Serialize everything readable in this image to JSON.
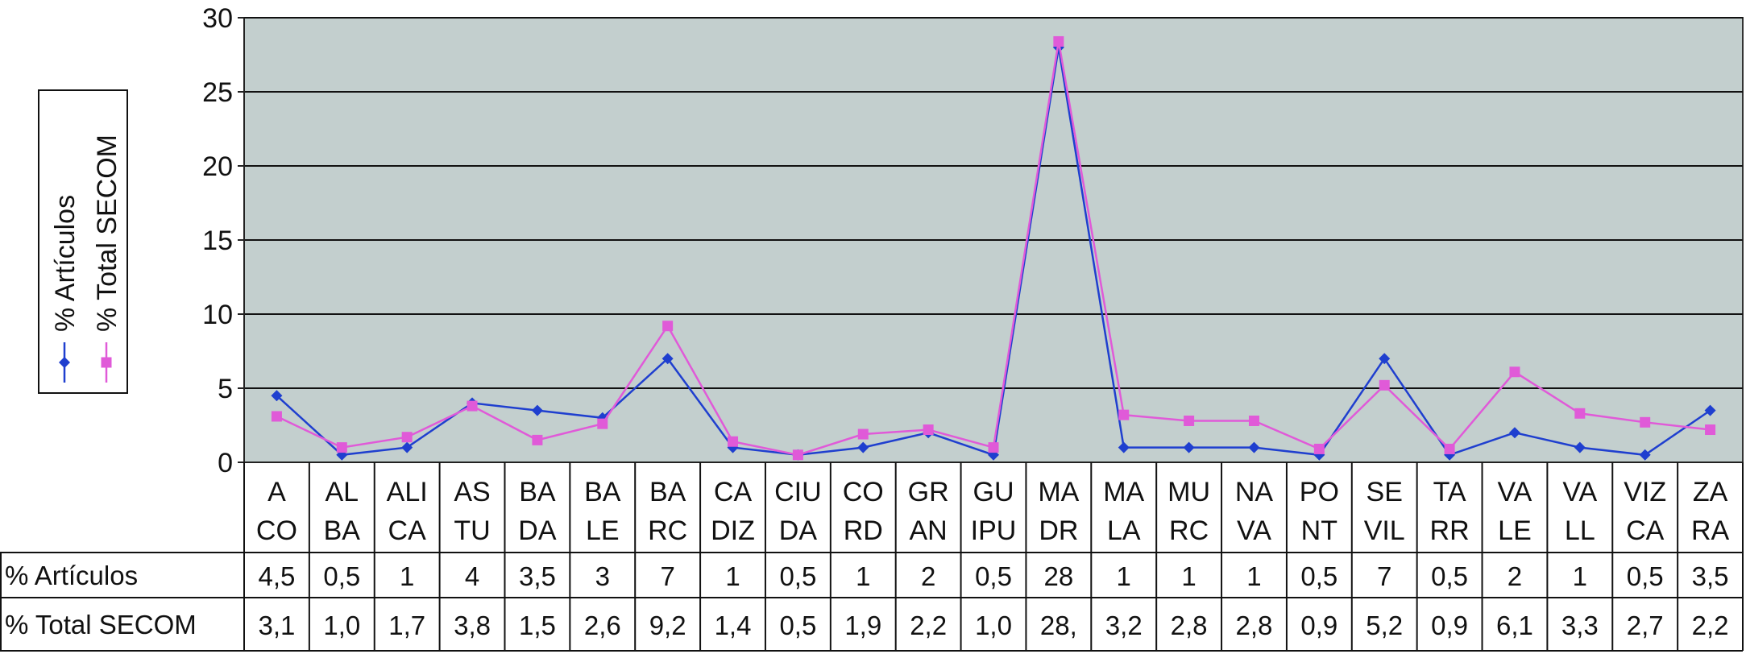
{
  "chart_data": {
    "type": "line",
    "ylim": [
      0,
      30
    ],
    "yticks": [
      0,
      5,
      10,
      15,
      20,
      25,
      30
    ],
    "grid": true,
    "legend_position": "left",
    "categories": [
      [
        "A",
        "CO"
      ],
      [
        "AL",
        "BA"
      ],
      [
        "ALI",
        "CA"
      ],
      [
        "AS",
        "TU"
      ],
      [
        "BA",
        "DA"
      ],
      [
        "BA",
        "LE"
      ],
      [
        "BA",
        "RC"
      ],
      [
        "CA",
        "DIZ"
      ],
      [
        "CIU",
        "DA"
      ],
      [
        "CO",
        "RD"
      ],
      [
        "GR",
        "AN"
      ],
      [
        "GU",
        "IPU"
      ],
      [
        "MA",
        "DR"
      ],
      [
        "MA",
        "LA"
      ],
      [
        "MU",
        "RC"
      ],
      [
        "NA",
        "VA"
      ],
      [
        "PO",
        "NT"
      ],
      [
        "SE",
        "VIL"
      ],
      [
        "TA",
        "RR"
      ],
      [
        "VA",
        "LE"
      ],
      [
        "VA",
        "LL"
      ],
      [
        "VIZ",
        "CA"
      ],
      [
        "ZA",
        "RA"
      ]
    ],
    "series": [
      {
        "name": "% Artículos",
        "color": "#1f3fcf",
        "marker": "diamond",
        "values": [
          4.5,
          0.5,
          1,
          4,
          3.5,
          3,
          7,
          1,
          0.5,
          1,
          2,
          0.5,
          28,
          1,
          1,
          1,
          0.5,
          7,
          0.5,
          2,
          1,
          0.5,
          3.5
        ],
        "table_labels": [
          "4,5",
          "0,5",
          "1",
          "4",
          "3,5",
          "3",
          "7",
          "1",
          "0,5",
          "1",
          "2",
          "0,5",
          "28",
          "1",
          "1",
          "1",
          "0,5",
          "7",
          "0,5",
          "2",
          "1",
          "0,5",
          "3,5"
        ]
      },
      {
        "name": "% Total SECOM",
        "color": "#e05ad8",
        "marker": "square",
        "values": [
          3.1,
          1.0,
          1.7,
          3.8,
          1.5,
          2.6,
          9.2,
          1.4,
          0.5,
          1.9,
          2.2,
          1.0,
          28.4,
          3.2,
          2.8,
          2.8,
          0.9,
          5.2,
          0.9,
          6.1,
          3.3,
          2.7,
          2.2
        ],
        "table_labels": [
          "3,1",
          "1,0",
          "1,7",
          "3,8",
          "1,5",
          "2,6",
          "9,2",
          "1,4",
          "0,5",
          "1,9",
          "2,2",
          "1,0",
          "28,",
          "3,2",
          "2,8",
          "2,8",
          "0,9",
          "5,2",
          "0,9",
          "6,1",
          "3,3",
          "2,7",
          "2,2"
        ]
      }
    ]
  }
}
